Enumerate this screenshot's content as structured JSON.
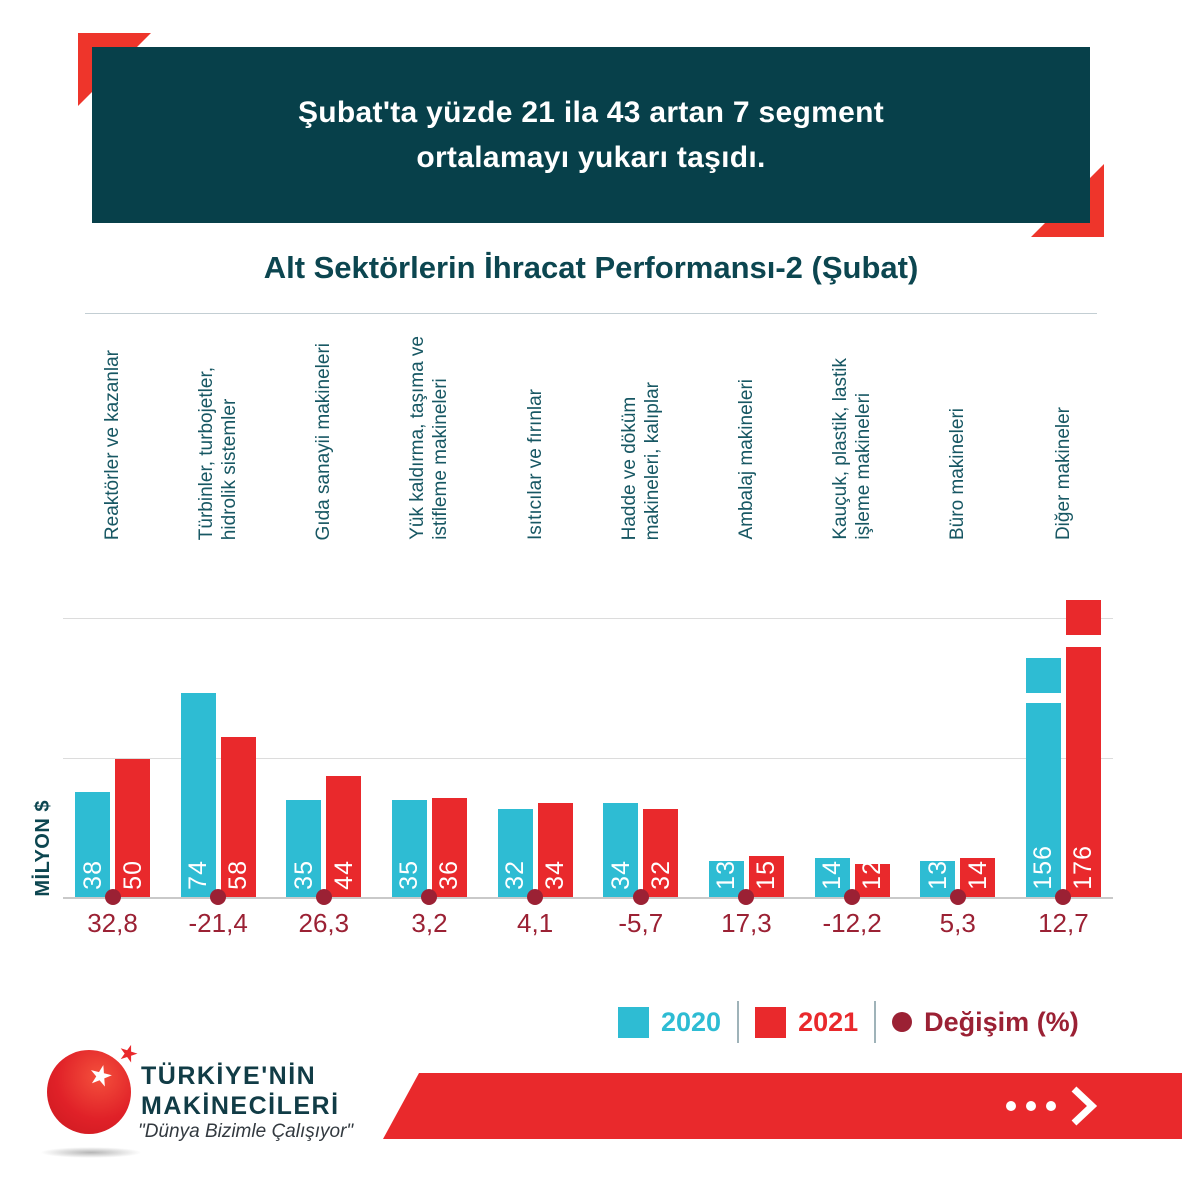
{
  "header": {
    "lines": [
      "Şubat'ta yüzde 21 ila 43 artan 7 segment",
      "ortalamayı yukarı taşıdı."
    ]
  },
  "chart_title": "Alt Sektörlerin İhracat Performansı-2 (Şubat)",
  "chart_data": {
    "type": "bar",
    "title": "Alt Sektörlerin İhracat Performansı-2 (Şubat)",
    "ylabel": "MİLYON $",
    "categories": [
      "Reaktörler ve kazanlar",
      "Türbinler, turbojetler,\nhidrolik sistemler",
      "Gıda sanayii makineleri",
      "Yük kaldırma, taşıma ve\nistifleme makineleri",
      "Isıtıcılar ve fırınlar",
      "Hadde ve döküm\nmakineleri, kalıplar",
      "Ambalaj makineleri",
      "Kauçuk, plastik, lastik\nişleme makineleri",
      "Büro makineleri",
      "Diğer makineler"
    ],
    "series": [
      {
        "name": "2020",
        "color": "#2ebcd3",
        "values": [
          38,
          74,
          35,
          35,
          32,
          34,
          13,
          14,
          13,
          156
        ]
      },
      {
        "name": "2021",
        "color": "#e9292c",
        "values": [
          50,
          58,
          44,
          36,
          34,
          32,
          15,
          12,
          14,
          176
        ]
      }
    ],
    "change_series": {
      "name": "Değişim (%)",
      "color": "#9b2134",
      "values": [
        32.8,
        -21.4,
        26.3,
        3.2,
        4.1,
        -5.7,
        17.3,
        -12.2,
        5.3,
        12.7
      ],
      "labels": [
        "32,8",
        "-21,4",
        "26,3",
        "3,2",
        "4,1",
        "-5,7",
        "17,3",
        "-12,2",
        "5,3",
        "12,7"
      ]
    },
    "ylim": [
      0,
      110
    ],
    "gridlines": [
      0,
      50,
      100
    ],
    "grid": true,
    "legend_position": "bottom",
    "axis_break": {
      "above": 100,
      "categories": [
        "Diğer makineler"
      ]
    }
  },
  "legend": [
    {
      "label": "2020",
      "color": "#2ebcd3",
      "swatch": "square"
    },
    {
      "label": "2021",
      "color": "#e9292c",
      "swatch": "square"
    },
    {
      "label": "Değişim (%)",
      "color": "#9b2134",
      "swatch": "circle"
    }
  ],
  "logo": {
    "name_line1": "TÜRKİYE'NİN",
    "name_line2": "MAKİNECİLERİ",
    "tagline": "\"Dünya Bizimle Çalışıyor\""
  },
  "icons": {
    "star": "★"
  },
  "colors": {
    "header_teal": "#07404a",
    "title_teal": "#0c4650",
    "category_label_teal": "#175763",
    "cyan_2020": "#2ebcd3",
    "red_2021": "#e9292c",
    "maroon_change": "#9b2134"
  }
}
